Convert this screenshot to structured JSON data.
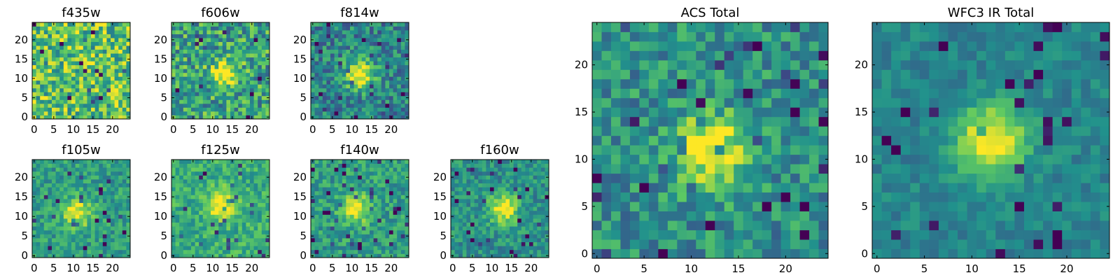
{
  "colormap": {
    "name": "viridis",
    "stops": [
      "#440154",
      "#3b528b",
      "#21918c",
      "#5ec962",
      "#fde725"
    ]
  },
  "chart_data": [
    {
      "id": "f435w",
      "type": "heatmap",
      "title": "f435w",
      "grid_size": 25,
      "source_x": 12,
      "source_y": 12,
      "source_strength": 0.0,
      "noise": 0.3,
      "base": 0.72,
      "seed": 11,
      "xticks": [
        0,
        5,
        10,
        15,
        20
      ],
      "yticks": [
        0,
        5,
        10,
        15,
        20
      ],
      "xlim": [
        0,
        24
      ],
      "ylim": [
        0,
        24
      ]
    },
    {
      "id": "f606w",
      "type": "heatmap",
      "title": "f606w",
      "grid_size": 25,
      "source_x": 13,
      "source_y": 11,
      "source_strength": 0.45,
      "noise": 0.28,
      "base": 0.58,
      "seed": 23,
      "xticks": [
        0,
        5,
        10,
        15,
        20
      ],
      "yticks": [
        0,
        5,
        10,
        15,
        20
      ],
      "xlim": [
        0,
        24
      ],
      "ylim": [
        0,
        24
      ]
    },
    {
      "id": "f814w",
      "type": "heatmap",
      "title": "f814w",
      "grid_size": 25,
      "source_x": 12,
      "source_y": 11,
      "source_strength": 0.65,
      "noise": 0.22,
      "base": 0.45,
      "seed": 37,
      "xticks": [
        0,
        5,
        10,
        15,
        20
      ],
      "yticks": [
        0,
        5,
        10,
        15,
        20
      ],
      "xlim": [
        0,
        24
      ],
      "ylim": [
        0,
        24
      ]
    },
    {
      "id": "f105w",
      "type": "heatmap",
      "title": "f105w",
      "grid_size": 25,
      "source_x": 11,
      "source_y": 11,
      "source_strength": 0.45,
      "noise": 0.16,
      "base": 0.55,
      "seed": 41,
      "xticks": [
        0,
        5,
        10,
        15,
        20
      ],
      "yticks": [
        0,
        5,
        10,
        15,
        20
      ],
      "xlim": [
        0,
        24
      ],
      "ylim": [
        0,
        24
      ]
    },
    {
      "id": "f125w",
      "type": "heatmap",
      "title": "f125w",
      "grid_size": 25,
      "source_x": 12,
      "source_y": 13,
      "source_strength": 0.4,
      "noise": 0.16,
      "base": 0.62,
      "seed": 53,
      "xticks": [
        0,
        5,
        10,
        15,
        20
      ],
      "yticks": [
        0,
        5,
        10,
        15,
        20
      ],
      "xlim": [
        0,
        24
      ],
      "ylim": [
        0,
        24
      ]
    },
    {
      "id": "f140w",
      "type": "heatmap",
      "title": "f140w",
      "grid_size": 25,
      "source_x": 11,
      "source_y": 12,
      "source_strength": 0.45,
      "noise": 0.17,
      "base": 0.55,
      "seed": 67,
      "xticks": [
        0,
        5,
        10,
        15,
        20
      ],
      "yticks": [
        0,
        5,
        10,
        15,
        20
      ],
      "xlim": [
        0,
        24
      ],
      "ylim": [
        0,
        24
      ]
    },
    {
      "id": "f160w",
      "type": "heatmap",
      "title": "f160w",
      "grid_size": 25,
      "source_x": 13,
      "source_y": 12,
      "source_strength": 0.55,
      "noise": 0.16,
      "base": 0.5,
      "seed": 79,
      "xticks": [
        0,
        5,
        10,
        15,
        20
      ],
      "yticks": [
        0,
        5,
        10,
        15,
        20
      ],
      "xlim": [
        0,
        24
      ],
      "ylim": [
        0,
        24
      ]
    },
    {
      "id": "acs_total",
      "type": "heatmap",
      "title": "ACS Total",
      "grid_size": 25,
      "source_x": 12,
      "source_y": 11,
      "source_strength": 0.55,
      "noise": 0.2,
      "base": 0.5,
      "seed": 89,
      "xticks": [
        0,
        5,
        10,
        15,
        20
      ],
      "yticks": [
        0,
        5,
        10,
        15,
        20
      ],
      "xlim": [
        0,
        24
      ],
      "ylim": [
        0,
        24
      ]
    },
    {
      "id": "wfc3_ir_total",
      "type": "heatmap",
      "title": "WFC3 IR Total",
      "grid_size": 25,
      "source_x": 12,
      "source_y": 12,
      "source_strength": 0.6,
      "noise": 0.1,
      "base": 0.45,
      "seed": 97,
      "xticks": [
        0,
        5,
        10,
        15,
        20
      ],
      "yticks": [
        0,
        5,
        10,
        15,
        20
      ],
      "xlim": [
        0,
        24
      ],
      "ylim": [
        0,
        24
      ]
    }
  ]
}
